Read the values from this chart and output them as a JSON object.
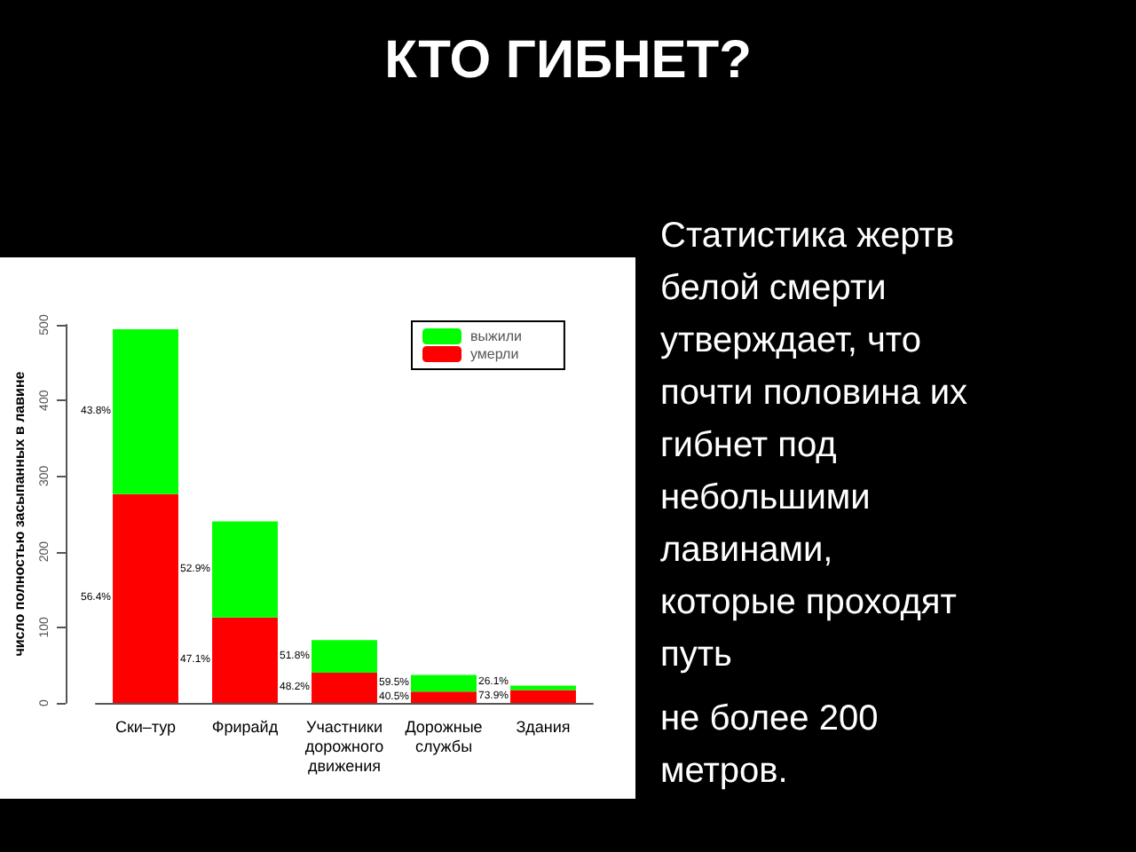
{
  "chart_data": {
    "type": "bar",
    "title": "КТО ГИБНЕТ?",
    "ylabel": "число полностью засыпанных в лавине",
    "categories": [
      "Ски–тур",
      "Фрирайд",
      "Участники\nдорожного\nдвижения",
      "Дорожные\nслужбы",
      "Здания"
    ],
    "stacked": true,
    "series": [
      {
        "name": "умерли",
        "color": "#ff0000",
        "values": [
          276,
          113,
          40,
          15,
          17
        ]
      },
      {
        "name": "выжили",
        "color": "#00ff00",
        "values": [
          218,
          127,
          43,
          22,
          6
        ]
      }
    ],
    "ylim": [
      0,
      500
    ],
    "yticks": [
      0,
      100,
      200,
      300,
      400,
      500
    ],
    "grid": false,
    "legend": "top right",
    "annotations": [
      "Статистика жертв\nбелой смерти\nутверждает, что\nпочти половина их\nгибнет под\nнебольшими\nлавинами,\nкоторые проходят\nпуть",
      "не более 200\nметров.",
      "43.8%",
      "56.4%",
      "52.9%",
      "47.1%",
      "51.8%",
      "48.2%",
      "59.5%",
      "40.5%",
      "26.1%",
      "73.9%"
    ]
  }
}
